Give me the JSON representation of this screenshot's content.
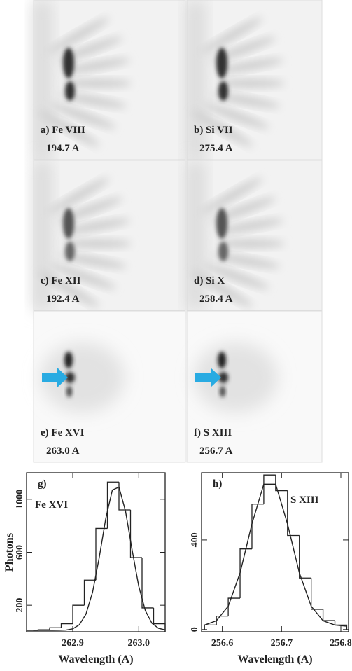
{
  "panels": [
    {
      "label": "a) Fe VIII",
      "wavelength": "194.7 A"
    },
    {
      "label": "b) Si VII",
      "wavelength": "275.4 A"
    },
    {
      "label": "c) Fe XII",
      "wavelength": "192.4 A"
    },
    {
      "label": "d) Si X",
      "wavelength": "258.4 A"
    },
    {
      "label": "e) Fe XVI",
      "wavelength": "263.0 A"
    },
    {
      "label": "f) S XIII",
      "wavelength": "256.7 A"
    }
  ],
  "chart_data": [
    {
      "type": "histogram",
      "annotation": "g)",
      "ion": "Fe XVI",
      "ylabel": "Photons",
      "xlabel": "Wavelength (A)",
      "bins": [
        262.83,
        262.8475,
        262.865,
        262.8825,
        262.9,
        262.9175,
        262.935,
        262.9525,
        262.97,
        262.9875,
        263.005,
        263.0225,
        263.04
      ],
      "values": [
        10,
        15,
        30,
        60,
        200,
        390,
        780,
        1130,
        920,
        560,
        180,
        60
      ],
      "fit": {
        "x": [
          262.84,
          262.85,
          262.86,
          262.87,
          262.88,
          262.89,
          262.9,
          262.91,
          262.92,
          262.93,
          262.94,
          262.95,
          262.96,
          262.97,
          262.98,
          262.99,
          263.0,
          263.01,
          263.02,
          263.03,
          263.04
        ],
        "values": [
          10,
          10,
          10,
          10,
          11,
          13,
          22,
          53,
          133,
          298,
          557,
          855,
          1070,
          1092,
          909,
          616,
          343,
          159,
          64,
          26,
          14
        ]
      },
      "color": "#222222",
      "xlim": [
        262.83,
        263.04
      ],
      "ylim": [
        0,
        1200
      ],
      "xticks": [
        262.9,
        {
          "value": 263,
          "label": "263.0"
        }
      ],
      "yticks": [
        200,
        600,
        1000
      ]
    },
    {
      "type": "histogram",
      "annotation": "h)",
      "ion": "S XIII",
      "xlabel": "Wavelength (A)",
      "bins": [
        256.57,
        256.59,
        256.61,
        256.63,
        256.65,
        256.67,
        256.69,
        256.71,
        256.73,
        256.75,
        256.77,
        256.79,
        256.81
      ],
      "values": [
        20,
        60,
        140,
        360,
        560,
        690,
        620,
        420,
        230,
        90,
        40,
        20
      ],
      "fit": {
        "x": [
          256.57,
          256.59,
          256.61,
          256.63,
          256.65,
          256.67,
          256.69,
          256.71,
          256.73,
          256.75,
          256.77,
          256.79,
          256.81
        ],
        "values": [
          20,
          39,
          104,
          253,
          472,
          649,
          649,
          472,
          253,
          104,
          39,
          20,
          15
        ]
      },
      "color": "#222222",
      "xlim": [
        256.565,
        256.813
      ],
      "ylim": [
        -10,
        700
      ],
      "xticks": [
        256.6,
        256.7,
        256.8
      ],
      "yticks": [
        0,
        400
      ]
    }
  ]
}
